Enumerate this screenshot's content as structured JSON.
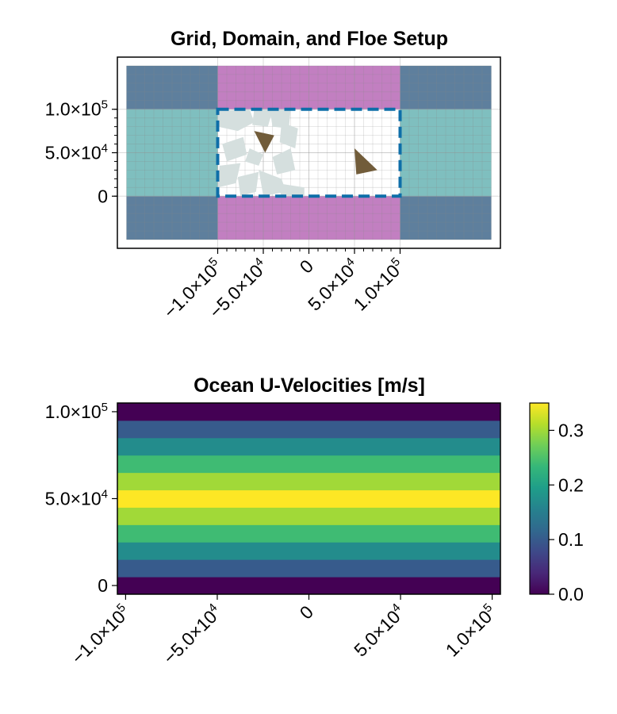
{
  "chart_data": [
    {
      "type": "other",
      "title": "Grid, Domain, and Floe Setup",
      "xlim": [
        -210000,
        210000
      ],
      "ylim": [
        -60000,
        160000
      ],
      "yticks": [
        {
          "value": 100000,
          "label": "1.0×10",
          "exp": "5"
        },
        {
          "value": 50000,
          "label": "5.0×10",
          "exp": "4"
        },
        {
          "value": 0,
          "label": "0",
          "exp": ""
        }
      ],
      "xticks": [
        {
          "value": -100000,
          "label": "−1.0×10",
          "exp": "5"
        },
        {
          "value": -50000,
          "label": "−5.0×10",
          "exp": "4"
        },
        {
          "value": 0,
          "label": "0",
          "exp": ""
        },
        {
          "value": 50000,
          "label": "5.0×10",
          "exp": "4"
        },
        {
          "value": 100000,
          "label": "1.0×10",
          "exp": "5"
        }
      ],
      "grid": {
        "x_extent": [
          -200000,
          200000
        ],
        "y_extent": [
          -50000,
          150000
        ]
      },
      "domain": {
        "x": [
          -100000,
          100000
        ],
        "y": [
          0,
          100000
        ]
      },
      "colors": {
        "corner": "#5e7f9d",
        "periodic_ns": "#c27fc1",
        "periodic_ew": "#7fbfbf",
        "domain_edge": "#0e6ea8",
        "topography": "#715c3a",
        "floes": "#d5dfde"
      },
      "topography": [
        {
          "points": [
            [
              -60000,
              75000
            ],
            [
              -38000,
              70000
            ],
            [
              -48000,
              50000
            ]
          ]
        },
        {
          "points": [
            [
              50000,
              55000
            ],
            [
              75000,
              30000
            ],
            [
              52000,
              25000
            ]
          ]
        }
      ],
      "floes": [
        {
          "points": [
            [
              -100000,
              98000
            ],
            [
              -65000,
              100000
            ],
            [
              -60000,
              85000
            ],
            [
              -78000,
              75000
            ],
            [
              -100000,
              80000
            ]
          ]
        },
        {
          "points": [
            [
              -95000,
              60000
            ],
            [
              -72000,
              68000
            ],
            [
              -68000,
              48000
            ],
            [
              -90000,
              40000
            ]
          ]
        },
        {
          "points": [
            [
              -98000,
              35000
            ],
            [
              -75000,
              38000
            ],
            [
              -80000,
              15000
            ],
            [
              -100000,
              10000
            ]
          ]
        },
        {
          "points": [
            [
              -78000,
              22000
            ],
            [
              -55000,
              28000
            ],
            [
              -58000,
              5000
            ],
            [
              -75000,
              0
            ]
          ]
        },
        {
          "points": [
            [
              -60000,
              100000
            ],
            [
              -40000,
              98000
            ],
            [
              -45000,
              80000
            ],
            [
              -62000,
              82000
            ]
          ]
        },
        {
          "points": [
            [
              -42000,
              95000
            ],
            [
              -20000,
              100000
            ],
            [
              -22000,
              78000
            ],
            [
              -40000,
              80000
            ]
          ]
        },
        {
          "points": [
            [
              -30000,
              85000
            ],
            [
              -12000,
              78000
            ],
            [
              -15000,
              55000
            ],
            [
              -32000,
              62000
            ]
          ]
        },
        {
          "points": [
            [
              -40000,
              45000
            ],
            [
              -20000,
              55000
            ],
            [
              -15000,
              30000
            ],
            [
              -35000,
              25000
            ]
          ]
        },
        {
          "points": [
            [
              -55000,
              30000
            ],
            [
              -30000,
              20000
            ],
            [
              -25000,
              5000
            ],
            [
              -50000,
              0
            ]
          ]
        },
        {
          "points": [
            [
              -35000,
              15000
            ],
            [
              -5000,
              10000
            ],
            [
              -5000,
              0
            ],
            [
              -30000,
              0
            ]
          ]
        },
        {
          "points": [
            [
              -65000,
              55000
            ],
            [
              -50000,
              48000
            ],
            [
              -55000,
              35000
            ],
            [
              -70000,
              40000
            ]
          ]
        },
        {
          "points": [
            [
              -50000,
              100000
            ],
            [
              -25000,
              100000
            ],
            [
              -30000,
              90000
            ],
            [
              -52000,
              92000
            ]
          ]
        }
      ]
    },
    {
      "type": "heatmap",
      "title": "Ocean U-Velocities [m/s]",
      "xlim": [
        -104500,
        104500
      ],
      "ylim": [
        -5000,
        105000
      ],
      "xticks": [
        {
          "value": -100000,
          "label": "−1.0×10",
          "exp": "5"
        },
        {
          "value": -50000,
          "label": "−5.0×10",
          "exp": "4"
        },
        {
          "value": 0,
          "label": "0",
          "exp": ""
        },
        {
          "value": 50000,
          "label": "5.0×10",
          "exp": "4"
        },
        {
          "value": 100000,
          "label": "1.0×10",
          "exp": "5"
        }
      ],
      "yticks": [
        {
          "value": 100000,
          "label": "1.0×10",
          "exp": "5"
        },
        {
          "value": 50000,
          "label": "5.0×10",
          "exp": "4"
        },
        {
          "value": 0,
          "label": "0",
          "exp": ""
        }
      ],
      "y": [
        0,
        10000,
        20000,
        30000,
        40000,
        50000,
        60000,
        70000,
        80000,
        90000,
        100000
      ],
      "values": [
        0.0,
        0.1,
        0.17,
        0.24,
        0.3,
        0.35,
        0.3,
        0.24,
        0.17,
        0.1,
        0.0
      ],
      "colorbar": {
        "range": [
          0.0,
          0.35
        ],
        "ticks": [
          {
            "value": 0.0,
            "label": "0.0"
          },
          {
            "value": 0.1,
            "label": "0.1"
          },
          {
            "value": 0.2,
            "label": "0.2"
          },
          {
            "value": 0.3,
            "label": "0.3"
          }
        ],
        "colormap": [
          "#440154",
          "#482878",
          "#3e4989",
          "#31688e",
          "#26828e",
          "#1f9e89",
          "#35b779",
          "#6ece58",
          "#b5de2b",
          "#fde725"
        ]
      }
    }
  ]
}
